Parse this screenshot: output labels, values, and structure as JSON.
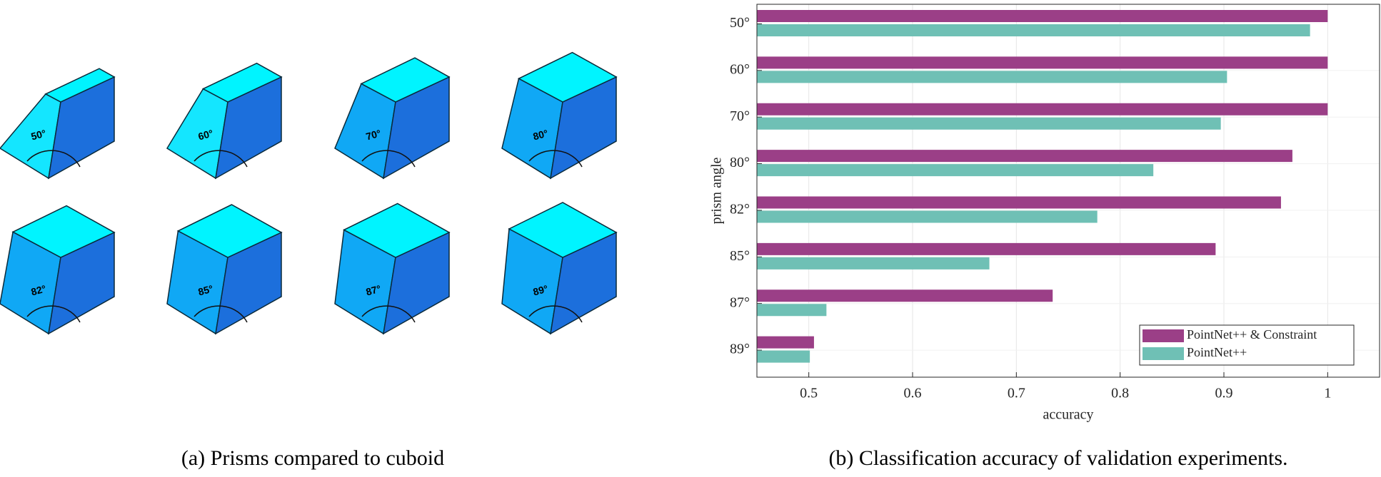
{
  "panel_a": {
    "caption": "(a) Prisms compared to cuboid",
    "angle_labels": [
      "50°",
      "60°",
      "70°",
      "80°",
      "82°",
      "85°",
      "87°",
      "89°"
    ]
  },
  "chart_data": {
    "type": "hbar",
    "caption": "(b) Classification accuracy of validation experiments.",
    "xlabel": "accuracy",
    "ylabel": "prism angle",
    "categories": [
      "50°",
      "60°",
      "70°",
      "80°",
      "82°",
      "85°",
      "87°",
      "89°"
    ],
    "series": [
      {
        "name": "PointNet++ & Constraint",
        "color": "#9b3f87",
        "values": [
          1.0,
          1.0,
          1.0,
          0.966,
          0.955,
          0.892,
          0.735,
          0.505
        ]
      },
      {
        "name": "PointNet++",
        "color": "#6fc0b5",
        "values": [
          0.983,
          0.903,
          0.897,
          0.832,
          0.778,
          0.674,
          0.517,
          0.501
        ]
      }
    ],
    "xlim": [
      0.45,
      1.05
    ],
    "xticks": [
      0.5,
      0.6,
      0.7,
      0.8,
      0.9,
      1
    ],
    "grid": true,
    "legend": "lower right"
  }
}
